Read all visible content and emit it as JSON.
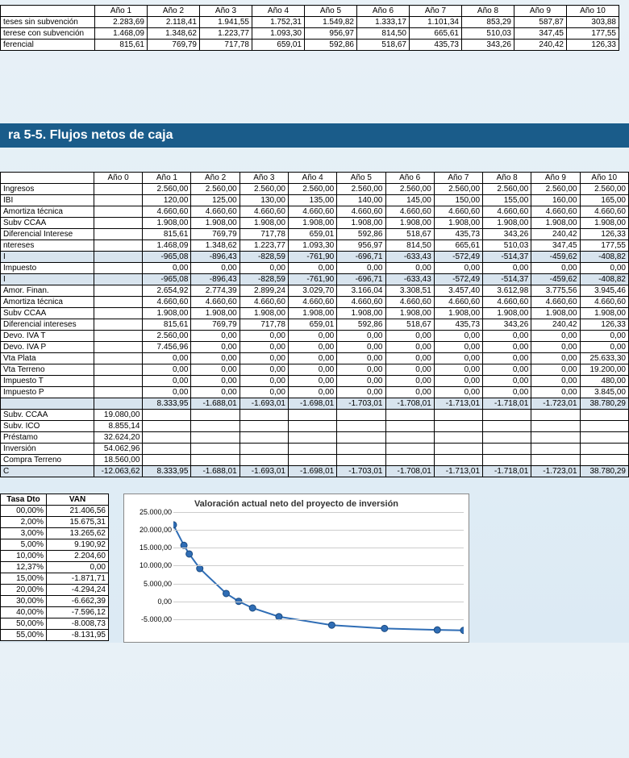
{
  "top_table": {
    "headers": [
      "Año 1",
      "Año 2",
      "Año 3",
      "Año 4",
      "Año 5",
      "Año 6",
      "Año 7",
      "Año 8",
      "Año 9",
      "Año 10"
    ],
    "rows": [
      {
        "label": "teses sin subvención",
        "vals": [
          "2.283,69",
          "2.118,41",
          "1.941,55",
          "1.752,31",
          "1.549,82",
          "1.333,17",
          "1.101,34",
          "853,29",
          "587,87",
          "303,88"
        ]
      },
      {
        "label": "terese con subvención",
        "vals": [
          "1.468,09",
          "1.348,62",
          "1.223,77",
          "1.093,30",
          "956,97",
          "814,50",
          "665,61",
          "510,03",
          "347,45",
          "177,55"
        ]
      },
      {
        "label": "ferencial",
        "vals": [
          "815,61",
          "769,79",
          "717,78",
          "659,01",
          "592,86",
          "518,67",
          "435,73",
          "343,26",
          "240,42",
          "126,33"
        ]
      }
    ]
  },
  "section_title": "ra 5-5. Flujos netos de caja",
  "main_table": {
    "headers": [
      "Año 0",
      "Año 1",
      "Año 2",
      "Año 3",
      "Año 4",
      "Año 5",
      "Año 6",
      "Año 7",
      "Año 8",
      "Año 9",
      "Año 10"
    ],
    "rows": [
      {
        "label": " Ingresos",
        "vals": [
          "",
          "2.560,00",
          "2.560,00",
          "2.560,00",
          "2.560,00",
          "2.560,00",
          "2.560,00",
          "2.560,00",
          "2.560,00",
          "2.560,00",
          "2.560,00"
        ]
      },
      {
        "label": "IBI",
        "vals": [
          "",
          "120,00",
          "125,00",
          "130,00",
          "135,00",
          "140,00",
          "145,00",
          "150,00",
          "155,00",
          "160,00",
          "165,00"
        ]
      },
      {
        "label": "Amortiza técnica",
        "vals": [
          "",
          "4.660,60",
          "4.660,60",
          "4.660,60",
          "4.660,60",
          "4.660,60",
          "4.660,60",
          "4.660,60",
          "4.660,60",
          "4.660,60",
          "4.660,60"
        ]
      },
      {
        "label": "Subv CCAA",
        "vals": [
          "",
          "1.908,00",
          "1.908,00",
          "1.908,00",
          "1.908,00",
          "1.908,00",
          "1.908,00",
          "1.908,00",
          "1.908,00",
          "1.908,00",
          "1.908,00"
        ]
      },
      {
        "label": "Diferencial Interese",
        "vals": [
          "",
          "815,61",
          "769,79",
          "717,78",
          "659,01",
          "592,86",
          "518,67",
          "435,73",
          "343,26",
          "240,42",
          "126,33"
        ]
      },
      {
        "label": "ntereses",
        "vals": [
          "",
          "1.468,09",
          "1.348,62",
          "1.223,77",
          "1.093,30",
          "956,97",
          "814,50",
          "665,61",
          "510,03",
          "347,45",
          "177,55"
        ]
      },
      {
        "label": "I",
        "vals": [
          "",
          "-965,08",
          "-896,43",
          "-828,59",
          "-761,90",
          "-696,71",
          "-633,43",
          "-572,49",
          "-514,37",
          "-459,62",
          "-408,82"
        ],
        "shade": true
      },
      {
        "label": "Impuesto",
        "vals": [
          "",
          "0,00",
          "0,00",
          "0,00",
          "0,00",
          "0,00",
          "0,00",
          "0,00",
          "0,00",
          "0,00",
          "0,00"
        ]
      },
      {
        "label": "I",
        "vals": [
          "",
          "-965,08",
          "-896,43",
          "-828,59",
          "-761,90",
          "-696,71",
          "-633,43",
          "-572,49",
          "-514,37",
          "-459,62",
          "-408,82"
        ],
        "shade": true
      },
      {
        "label": "Amor. Finan.",
        "vals": [
          "",
          "2.654,92",
          "2.774,39",
          "2.899,24",
          "3.029,70",
          "3.166,04",
          "3.308,51",
          "3.457,40",
          "3.612,98",
          "3.775,56",
          "3.945,46"
        ]
      },
      {
        "label": "Amortiza técnica",
        "vals": [
          "",
          "4.660,60",
          "4.660,60",
          "4.660,60",
          "4.660,60",
          "4.660,60",
          "4.660,60",
          "4.660,60",
          "4.660,60",
          "4.660,60",
          "4.660,60"
        ]
      },
      {
        "label": "Subv CCAA",
        "vals": [
          "",
          "1.908,00",
          "1.908,00",
          "1.908,00",
          "1.908,00",
          "1.908,00",
          "1.908,00",
          "1.908,00",
          "1.908,00",
          "1.908,00",
          "1.908,00"
        ]
      },
      {
        "label": "Diferencial intereses",
        "vals": [
          "",
          "815,61",
          "769,79",
          "717,78",
          "659,01",
          "592,86",
          "518,67",
          "435,73",
          "343,26",
          "240,42",
          "126,33"
        ]
      },
      {
        "label": " Devo. IVA T",
        "vals": [
          "",
          "2.560,00",
          "0,00",
          "0,00",
          "0,00",
          "0,00",
          "0,00",
          "0,00",
          "0,00",
          "0,00",
          "0,00"
        ]
      },
      {
        "label": " Devo. IVA  P",
        "vals": [
          "",
          "7.456,96",
          "0,00",
          "0,00",
          "0,00",
          "0,00",
          "0,00",
          "0,00",
          "0,00",
          "0,00",
          "0,00"
        ]
      },
      {
        "label": "Vta Plata",
        "vals": [
          "",
          "0,00",
          "0,00",
          "0,00",
          "0,00",
          "0,00",
          "0,00",
          "0,00",
          "0,00",
          "0,00",
          "25.633,30"
        ]
      },
      {
        "label": "Vta Terreno",
        "vals": [
          "",
          "0,00",
          "0,00",
          "0,00",
          "0,00",
          "0,00",
          "0,00",
          "0,00",
          "0,00",
          "0,00",
          "19.200,00"
        ]
      },
      {
        "label": "Impuesto T",
        "vals": [
          "",
          "0,00",
          "0,00",
          "0,00",
          "0,00",
          "0,00",
          "0,00",
          "0,00",
          "0,00",
          "0,00",
          "480,00"
        ]
      },
      {
        "label": "Impuesto P",
        "vals": [
          "",
          "0,00",
          "0,00",
          "0,00",
          "0,00",
          "0,00",
          "0,00",
          "0,00",
          "0,00",
          "0,00",
          "3.845,00"
        ]
      },
      {
        "label": "",
        "vals": [
          "",
          "8.333,95",
          "-1.688,01",
          "-1.693,01",
          "-1.698,01",
          "-1.703,01",
          "-1.708,01",
          "-1.713,01",
          "-1.718,01",
          "-1.723,01",
          "38.780,29"
        ],
        "shade": true
      },
      {
        "label": "Subv. CCAA",
        "vals": [
          "19.080,00",
          "",
          "",
          "",
          "",
          "",
          "",
          "",
          "",
          "",
          ""
        ]
      },
      {
        "label": "Subv. ICO",
        "vals": [
          "8.855,14",
          "",
          "",
          "",
          "",
          "",
          "",
          "",
          "",
          "",
          ""
        ]
      },
      {
        "label": "Préstamo",
        "vals": [
          "32.624,20",
          "",
          "",
          "",
          "",
          "",
          "",
          "",
          "",
          "",
          ""
        ]
      },
      {
        "label": "Inversión",
        "vals": [
          "54.062,96",
          "",
          "",
          "",
          "",
          "",
          "",
          "",
          "",
          "",
          ""
        ]
      },
      {
        "label": "Compra Terreno",
        "vals": [
          "18.560,00",
          "",
          "",
          "",
          "",
          "",
          "",
          "",
          "",
          "",
          ""
        ]
      },
      {
        "label": "C",
        "vals": [
          "-12.063,62",
          "8.333,95",
          "-1.688,01",
          "-1.693,01",
          "-1.698,01",
          "-1.703,01",
          "-1.708,01",
          "-1.713,01",
          "-1.718,01",
          "-1.723,01",
          "38.780,29"
        ],
        "shade": true
      }
    ]
  },
  "van_table": {
    "headers": [
      "Tasa Dto",
      "VAN"
    ],
    "rows": [
      [
        "00,00%",
        "21.406,56"
      ],
      [
        "2,00%",
        "15.675,31"
      ],
      [
        "3,00%",
        "13.265,62"
      ],
      [
        "5,00%",
        "9.190,92"
      ],
      [
        "10,00%",
        "2.204,60"
      ],
      [
        "12,37%",
        "0,00"
      ],
      [
        "15,00%",
        "-1.871,71"
      ],
      [
        "20,00%",
        "-4.294,24"
      ],
      [
        "30,00%",
        "-6.662,39"
      ],
      [
        "40,00%",
        "-7.596,12"
      ],
      [
        "50,00%",
        "-8.008,73"
      ],
      [
        "55,00%",
        "-8.131,95"
      ]
    ]
  },
  "chart": {
    "title": "Valoración actual neto del proyecto de inversión",
    "type": "line",
    "x_values": [
      0,
      2,
      3,
      5,
      10,
      12.37,
      15,
      20,
      30,
      40,
      50,
      55
    ],
    "y_values": [
      21406.56,
      15675.31,
      13265.62,
      9190.92,
      2204.6,
      0,
      -1871.71,
      -4294.24,
      -6662.39,
      -7596.12,
      -8008.73,
      -8131.95
    ],
    "xlim": [
      0,
      55
    ],
    "ylim": [
      -10000,
      25000
    ],
    "yticks": [
      25000,
      20000,
      15000,
      10000,
      5000,
      0,
      -5000
    ],
    "ytick_labels": [
      "25.000,00",
      "20.000,00",
      "15.000,00",
      "10.000,00",
      "5.000,00",
      "0,00",
      "-5.000,00"
    ],
    "line_color": "#2f6db5",
    "marker_color": "#2f6db5",
    "grid_color": "#cccccc",
    "background_color": "#ffffff",
    "title_fontsize": 11
  }
}
